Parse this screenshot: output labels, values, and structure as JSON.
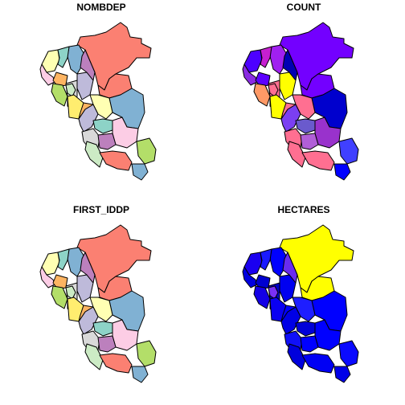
{
  "panels": [
    {
      "title": "NOMBDEP",
      "colors": [
        "#FB8072",
        "#FFFFB3",
        "#FCCDE5",
        "#80B1D3",
        "#8DD3C7",
        "#FDB462",
        "#BEBADA",
        "#B3DE69",
        "#D9D9D9",
        "#BC80BD",
        "#CCEBC5",
        "#FFED6F",
        "#FB8072",
        "#80B1D3",
        "#FFFFB3",
        "#BEBADA",
        "#FDB462",
        "#8DD3C7",
        "#D9D9D9",
        "#FCCDE5",
        "#CCEBC5",
        "#BC80BD",
        "#FB8072",
        "#B3DE69",
        "#80B1D3"
      ]
    },
    {
      "title": "COUNT",
      "colors": [
        "#7300FF",
        "#4D00FF",
        "#8A2BE2",
        "#A020F0",
        "#C71FD1",
        "#5C00FF",
        "#FFFF00",
        "#FF9966",
        "#FF6F91",
        "#0000B3",
        "#FF6F91",
        "#FFFF00",
        "#7300FF",
        "#0000CD",
        "#FF6F91",
        "#7B3FF2",
        "#FF6F91",
        "#6A5ACD",
        "#FF6F91",
        "#9932CC",
        "#FF6F91",
        "#B15FD8",
        "#FF6F91",
        "#4040FF",
        "#0000FF"
      ]
    },
    {
      "title": "FIRST_IDDP",
      "colors": [
        "#FB8072",
        "#FFFFB3",
        "#FCCDE5",
        "#80B1D3",
        "#8DD3C7",
        "#FDB462",
        "#BEBADA",
        "#B3DE69",
        "#D9D9D9",
        "#BC80BD",
        "#CCEBC5",
        "#FFED6F",
        "#FB8072",
        "#80B1D3",
        "#FFFFB3",
        "#BEBADA",
        "#FDB462",
        "#8DD3C7",
        "#D9D9D9",
        "#FCCDE5",
        "#CCEBC5",
        "#BC80BD",
        "#FB8072",
        "#B3DE69",
        "#80B1D3"
      ]
    },
    {
      "title": "HECTARES",
      "colors": [
        "#FFFF00",
        "#1A00F0",
        "#0000E0",
        "#0000FF",
        "#1A1AFF",
        "#0000D0",
        "#0000F0",
        "#1400E6",
        "#0000C8",
        "#6A2BF0",
        "#7A30F5",
        "#0A00F2",
        "#FFFF00",
        "#0000FF",
        "#1E1EFF",
        "#0000E6",
        "#0000FF",
        "#0000D8",
        "#1010F8",
        "#0000FF",
        "#0000DC",
        "#0000FF",
        "#0000F4",
        "#0A0AFF",
        "#0000E8"
      ]
    }
  ]
}
